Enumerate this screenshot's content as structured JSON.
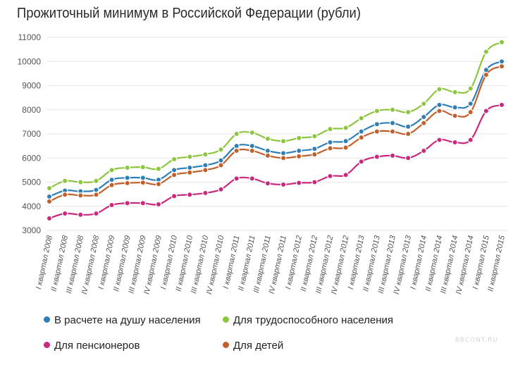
{
  "chart_data": {
    "type": "line",
    "title": "Прожиточный минимум в Российской Федерации (рубли)",
    "ylim": [
      3000,
      11000
    ],
    "yticks": [
      3000,
      4000,
      5000,
      6000,
      7000,
      8000,
      9000,
      10000,
      11000
    ],
    "grid": true,
    "legend_position": "bottom",
    "categories": [
      "I квартал 2008",
      "II квартал 2008",
      "III квартал 2008",
      "IV квартал 2008",
      "I квартал 2009",
      "II квартал 2009",
      "III квартал 2009",
      "IV квартал 2009",
      "I квартал 2010",
      "II квартал 2010",
      "III квартал 2010",
      "IV квартал 2010",
      "I квартал 2011",
      "II квартал 2011",
      "III квартал 2011",
      "IV квартал 2011",
      "I квартал 2012",
      "II квартал 2012",
      "III квартал 2012",
      "IV квартал 2012",
      "I квартал 2013",
      "II квартал 2013",
      "III квартал 2013",
      "IV квартал 2013",
      "I квартал 2014",
      "II квартал 2014",
      "III квартал 2014",
      "IV квартал 2014",
      "I квартал 2015",
      "II квартал 2015"
    ],
    "series": [
      {
        "name": "Для трудоспособного населения",
        "color": "#8cc63e",
        "values": [
          4750,
          5050,
          5000,
          5050,
          5500,
          5600,
          5620,
          5550,
          5950,
          6050,
          6150,
          6350,
          7000,
          7050,
          6800,
          6700,
          6830,
          6900,
          7200,
          7250,
          7650,
          7950,
          8000,
          7900,
          8250,
          8850,
          8730,
          8880,
          10400,
          10800
        ]
      },
      {
        "name": "В расчете на душу населения",
        "color": "#2f7fb6",
        "values": [
          4400,
          4650,
          4620,
          4680,
          5100,
          5180,
          5180,
          5100,
          5500,
          5600,
          5700,
          5900,
          6500,
          6500,
          6300,
          6200,
          6300,
          6380,
          6650,
          6700,
          7100,
          7400,
          7450,
          7300,
          7700,
          8200,
          8100,
          8250,
          9650,
          10000
        ]
      },
      {
        "name": "Для детей",
        "color": "#c0612d",
        "values": [
          4200,
          4480,
          4450,
          4480,
          4880,
          4960,
          4980,
          4920,
          5300,
          5400,
          5500,
          5700,
          6300,
          6300,
          6100,
          6000,
          6070,
          6150,
          6400,
          6430,
          6850,
          7100,
          7100,
          7000,
          7450,
          7950,
          7750,
          7900,
          9450,
          9800
        ]
      },
      {
        "name": "Для пенсионеров",
        "color": "#c9287d",
        "values": [
          3500,
          3700,
          3650,
          3700,
          4050,
          4130,
          4130,
          4080,
          4420,
          4480,
          4550,
          4700,
          5150,
          5150,
          4950,
          4900,
          4970,
          5000,
          5250,
          5300,
          5850,
          6050,
          6100,
          6000,
          6300,
          6750,
          6650,
          6750,
          7950,
          8200
        ]
      }
    ]
  },
  "legend": [
    {
      "label": "В расчете на душу населения",
      "color": "#2f7fb6"
    },
    {
      "label": "Для трудоспособного населения",
      "color": "#8cc63e"
    },
    {
      "label": "Для пенсионеров",
      "color": "#c9287d"
    },
    {
      "label": "Для детей",
      "color": "#c0612d"
    }
  ],
  "watermark": "BBCONT.RU"
}
